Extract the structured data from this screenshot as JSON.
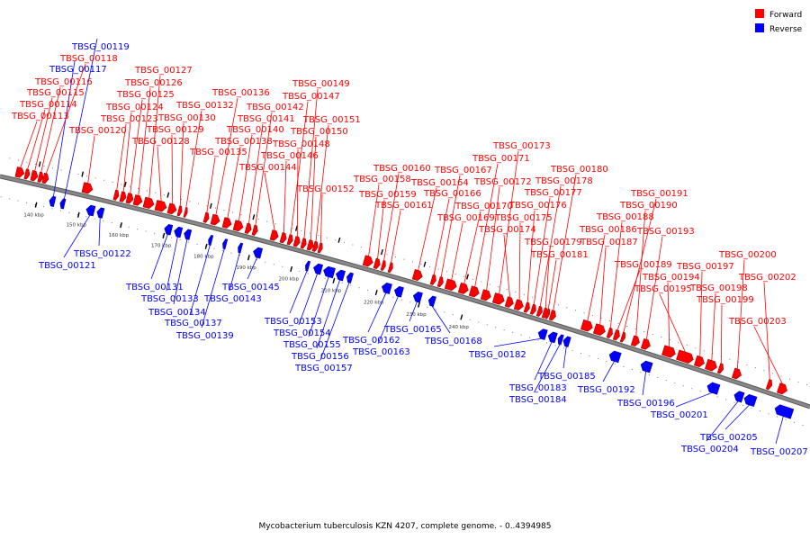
{
  "legend": {
    "forward": {
      "label": "Forward",
      "color": "#ff0000"
    },
    "reverse": {
      "label": "Reverse",
      "color": "#0000ff"
    }
  },
  "caption": "Mycobacterium tuberculosis KZN 4207, complete genome. - 0..4394985",
  "backbone_color": "#888888",
  "ticks": [
    {
      "label": "140 kbp",
      "kbp": 140
    },
    {
      "label": "150 kbp",
      "kbp": 150
    },
    {
      "label": "160 kbp",
      "kbp": 160
    },
    {
      "label": "170 kbp",
      "kbp": 170
    },
    {
      "label": "180 kbp",
      "kbp": 180
    },
    {
      "label": "190 kbp",
      "kbp": 190
    },
    {
      "label": "200 kbp",
      "kbp": 200
    },
    {
      "label": "210 kbp",
      "kbp": 210
    },
    {
      "label": "220 kbp",
      "kbp": 220
    },
    {
      "label": "230 kbp",
      "kbp": 230
    },
    {
      "label": "240 kbp",
      "kbp": 240
    }
  ],
  "genes": [
    {
      "id": "TBSG_00113",
      "strand": "forward"
    },
    {
      "id": "TBSG_00114",
      "strand": "forward"
    },
    {
      "id": "TBSG_00115",
      "strand": "forward"
    },
    {
      "id": "TBSG_00116",
      "strand": "forward"
    },
    {
      "id": "TBSG_00117",
      "strand": "reverse"
    },
    {
      "id": "TBSG_00118",
      "strand": "forward"
    },
    {
      "id": "TBSG_00119",
      "strand": "reverse"
    },
    {
      "id": "TBSG_00120",
      "strand": "forward"
    },
    {
      "id": "TBSG_00121",
      "strand": "reverse"
    },
    {
      "id": "TBSG_00122",
      "strand": "reverse"
    },
    {
      "id": "TBSG_00123",
      "strand": "forward"
    },
    {
      "id": "TBSG_00124",
      "strand": "forward"
    },
    {
      "id": "TBSG_00125",
      "strand": "forward"
    },
    {
      "id": "TBSG_00126",
      "strand": "forward"
    },
    {
      "id": "TBSG_00127",
      "strand": "forward"
    },
    {
      "id": "TBSG_00128",
      "strand": "forward"
    },
    {
      "id": "TBSG_00129",
      "strand": "forward"
    },
    {
      "id": "TBSG_00130",
      "strand": "forward"
    },
    {
      "id": "TBSG_00131",
      "strand": "reverse"
    },
    {
      "id": "TBSG_00132",
      "strand": "forward"
    },
    {
      "id": "TBSG_00133",
      "strand": "reverse"
    },
    {
      "id": "TBSG_00134",
      "strand": "reverse"
    },
    {
      "id": "TBSG_00135",
      "strand": "forward"
    },
    {
      "id": "TBSG_00136",
      "strand": "forward"
    },
    {
      "id": "TBSG_00137",
      "strand": "reverse"
    },
    {
      "id": "TBSG_00138",
      "strand": "forward"
    },
    {
      "id": "TBSG_00139",
      "strand": "reverse"
    },
    {
      "id": "TBSG_00140",
      "strand": "forward"
    },
    {
      "id": "TBSG_00141",
      "strand": "forward"
    },
    {
      "id": "TBSG_00142",
      "strand": "forward"
    },
    {
      "id": "TBSG_00143",
      "strand": "reverse"
    },
    {
      "id": "TBSG_00144",
      "strand": "forward"
    },
    {
      "id": "TBSG_00145",
      "strand": "reverse"
    },
    {
      "id": "TBSG_00146",
      "strand": "forward"
    },
    {
      "id": "TBSG_00147",
      "strand": "forward"
    },
    {
      "id": "TBSG_00148",
      "strand": "forward"
    },
    {
      "id": "TBSG_00149",
      "strand": "forward"
    },
    {
      "id": "TBSG_00150",
      "strand": "forward"
    },
    {
      "id": "TBSG_00151",
      "strand": "forward"
    },
    {
      "id": "TBSG_00152",
      "strand": "forward"
    },
    {
      "id": "TBSG_00153",
      "strand": "reverse"
    },
    {
      "id": "TBSG_00154",
      "strand": "reverse"
    },
    {
      "id": "TBSG_00155",
      "strand": "reverse"
    },
    {
      "id": "TBSG_00156",
      "strand": "reverse"
    },
    {
      "id": "TBSG_00157",
      "strand": "reverse"
    },
    {
      "id": "TBSG_00158",
      "strand": "forward"
    },
    {
      "id": "TBSG_00159",
      "strand": "forward"
    },
    {
      "id": "TBSG_00160",
      "strand": "forward"
    },
    {
      "id": "TBSG_00161",
      "strand": "forward"
    },
    {
      "id": "TBSG_00162",
      "strand": "reverse"
    },
    {
      "id": "TBSG_00163",
      "strand": "reverse"
    },
    {
      "id": "TBSG_00164",
      "strand": "forward"
    },
    {
      "id": "TBSG_00165",
      "strand": "reverse"
    },
    {
      "id": "TBSG_00166",
      "strand": "forward"
    },
    {
      "id": "TBSG_00167",
      "strand": "forward"
    },
    {
      "id": "TBSG_00168",
      "strand": "reverse"
    },
    {
      "id": "TBSG_00169",
      "strand": "forward"
    },
    {
      "id": "TBSG_00170",
      "strand": "forward"
    },
    {
      "id": "TBSG_00171",
      "strand": "forward"
    },
    {
      "id": "TBSG_00172",
      "strand": "forward"
    },
    {
      "id": "TBSG_00173",
      "strand": "forward"
    },
    {
      "id": "TBSG_00174",
      "strand": "forward"
    },
    {
      "id": "TBSG_00175",
      "strand": "forward"
    },
    {
      "id": "TBSG_00176",
      "strand": "forward"
    },
    {
      "id": "TBSG_00177",
      "strand": "forward"
    },
    {
      "id": "TBSG_00178",
      "strand": "forward"
    },
    {
      "id": "TBSG_00179",
      "strand": "forward"
    },
    {
      "id": "TBSG_00180",
      "strand": "forward"
    },
    {
      "id": "TBSG_00181",
      "strand": "forward"
    },
    {
      "id": "TBSG_00182",
      "strand": "reverse"
    },
    {
      "id": "TBSG_00183",
      "strand": "reverse"
    },
    {
      "id": "TBSG_00184",
      "strand": "reverse"
    },
    {
      "id": "TBSG_00185",
      "strand": "reverse"
    },
    {
      "id": "TBSG_00186",
      "strand": "forward"
    },
    {
      "id": "TBSG_00187",
      "strand": "forward"
    },
    {
      "id": "TBSG_00188",
      "strand": "forward"
    },
    {
      "id": "TBSG_00189",
      "strand": "forward"
    },
    {
      "id": "TBSG_00190",
      "strand": "forward"
    },
    {
      "id": "TBSG_00191",
      "strand": "forward"
    },
    {
      "id": "TBSG_00192",
      "strand": "reverse"
    },
    {
      "id": "TBSG_00193",
      "strand": "forward"
    },
    {
      "id": "TBSG_00194",
      "strand": "forward"
    },
    {
      "id": "TBSG_00195",
      "strand": "forward"
    },
    {
      "id": "TBSG_00196",
      "strand": "reverse"
    },
    {
      "id": "TBSG_00197",
      "strand": "forward"
    },
    {
      "id": "TBSG_00198",
      "strand": "forward"
    },
    {
      "id": "TBSG_00199",
      "strand": "forward"
    },
    {
      "id": "TBSG_00200",
      "strand": "forward"
    },
    {
      "id": "TBSG_00201",
      "strand": "reverse"
    },
    {
      "id": "TBSG_00202",
      "strand": "forward"
    },
    {
      "id": "TBSG_00203",
      "strand": "forward"
    },
    {
      "id": "TBSG_00204",
      "strand": "reverse"
    },
    {
      "id": "TBSG_00205",
      "strand": "reverse"
    },
    {
      "id": "TBSG_00207",
      "strand": "reverse"
    }
  ]
}
